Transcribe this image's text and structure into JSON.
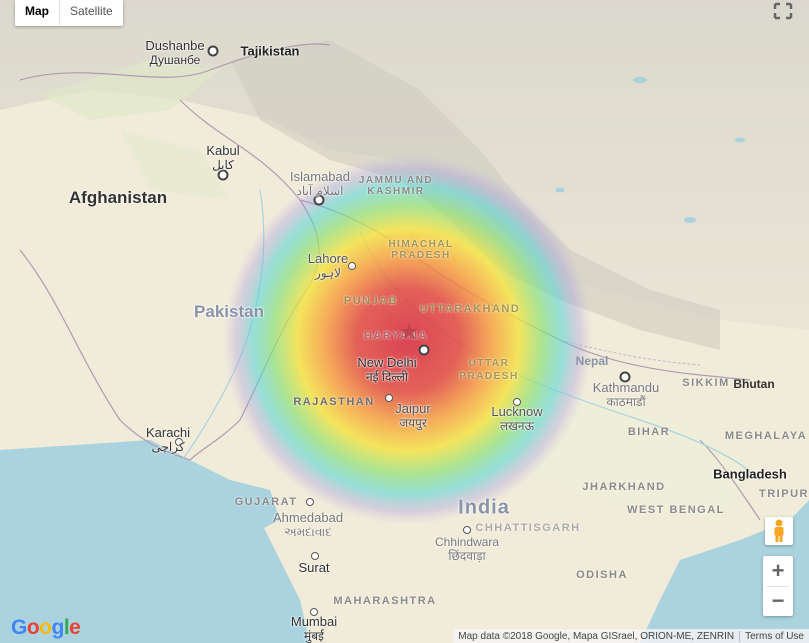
{
  "map_type": {
    "map_label": "Map",
    "satellite_label": "Satellite",
    "selected": "Map"
  },
  "countries": {
    "tajikistan": "Tajikistan",
    "afghanistan": "Afghanistan",
    "pakistan": "Pakistan",
    "india": "India",
    "nepal": "Nepal",
    "bhutan": "Bhutan",
    "bangladesh": "Bangladesh"
  },
  "regions": {
    "jammu_kashmir": "JAMMU AND KASHMIR",
    "himachal_pradesh": "HIMACHAL PRADESH",
    "punjab": "PUNJAB",
    "uttarakhand": "UTTARAKHAND",
    "haryana": "HARYANA",
    "uttar_pradesh": "UTTAR PRADESH",
    "rajasthan": "RAJASTHAN",
    "bihar": "BIHAR",
    "sikkim": "SIKKIM",
    "meghalaya": "MEGHALAYA",
    "gujarat": "GUJARAT",
    "jharkhand": "JHARKHAND",
    "west_bengal": "WEST BENGAL",
    "chhattisgarh": "CHHATTISGARH",
    "odisha": "ODISHA",
    "maharashtra": "MAHARASHTRA",
    "tripura": "TRIPUR"
  },
  "cities": {
    "dushanbe": {
      "name": "Dushanbe",
      "native": "Душанбе"
    },
    "kabul": {
      "name": "Kabul",
      "native": "کابل"
    },
    "islamabad": {
      "name": "Islamabad",
      "native": "اسلام آباد"
    },
    "lahore": {
      "name": "Lahore",
      "native": "لاہور"
    },
    "new_delhi": {
      "name": "New Delhi",
      "native": "नई दिल्ली"
    },
    "jaipur": {
      "name": "Jaipur",
      "native": "जयपुर"
    },
    "lucknow": {
      "name": "Lucknow",
      "native": "लखनऊ"
    },
    "kathmandu": {
      "name": "Kathmandu",
      "native": "काठमाडौं"
    },
    "karachi": {
      "name": "Karachi",
      "native": "کراچی"
    },
    "ahmedabad": {
      "name": "Ahmedabad",
      "native": "અમદાવાદ"
    },
    "chhindwara": {
      "name": "Chhindwara",
      "native": "छिंदवाड़ा"
    },
    "surat": {
      "name": "Surat"
    },
    "mumbai": {
      "name": "Mumbai",
      "native": "मुंबई"
    }
  },
  "epicenter": {
    "symbol": "★",
    "color": "#d64541"
  },
  "heatmap_colors": [
    "#d7263d",
    "#f46036",
    "#f9c80e",
    "#9be564",
    "#3ec1d3",
    "#a29bd4"
  ],
  "controls": {
    "zoom_in": "+",
    "zoom_out": "−"
  },
  "logo": {
    "text": "Google",
    "letters": [
      "G",
      "o",
      "o",
      "g",
      "l",
      "e"
    ],
    "colors": [
      "#4285F4",
      "#EA4335",
      "#FBBC05",
      "#4285F4",
      "#34A853",
      "#EA4335"
    ]
  },
  "attribution": {
    "data": "Map data ©2018 Google, Mapa GISrael, ORION-ME, ZENRIN",
    "terms": "Terms of Use"
  }
}
